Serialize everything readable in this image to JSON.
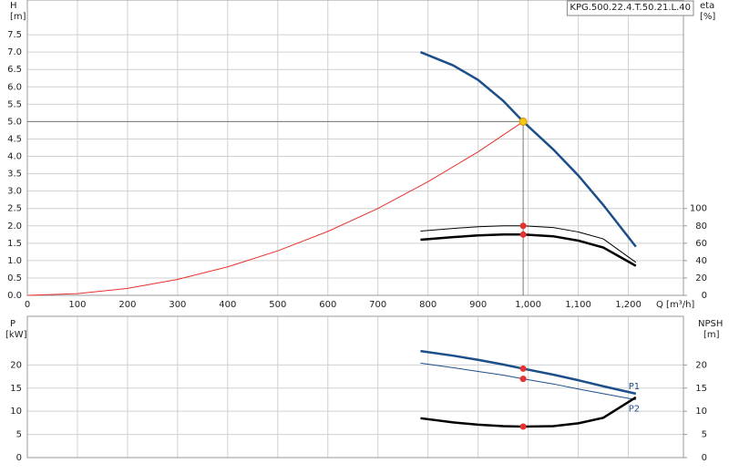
{
  "chart_data": [
    {
      "type": "line",
      "title": "KPG.500.22.4.T.50.21.L.40",
      "y_label": "H",
      "y_unit": "[m]",
      "y2_label": "eta",
      "y2_unit": "[%]",
      "x_label": "Q [m³/h]",
      "xlim": [
        0,
        1310
      ],
      "xticks": [
        0,
        100,
        200,
        300,
        400,
        500,
        600,
        700,
        800,
        900,
        {
          "value": 1000,
          "label": "1,000"
        },
        {
          "value": 1100,
          "label": "1,100"
        },
        {
          "value": 1200,
          "label": "1,200"
        }
      ],
      "ylim": [
        0,
        8.5
      ],
      "yticks": [
        {
          "value": 0,
          "label": "0.0"
        },
        0.5,
        {
          "value": 1,
          "label": "1.0"
        },
        1.5,
        {
          "value": 2,
          "label": "2.0"
        },
        2.5,
        {
          "value": 3,
          "label": "3.0"
        },
        3.5,
        {
          "value": 4,
          "label": "4.0"
        },
        4.5,
        {
          "value": 5,
          "label": "5.0"
        },
        5.5,
        {
          "value": 6,
          "label": "6.0"
        },
        6.5,
        {
          "value": 7,
          "label": "7.0"
        },
        7.5
      ],
      "y2lim": [
        0,
        340
      ],
      "y2ticks": [
        0,
        20,
        40,
        60,
        80,
        100
      ],
      "grid": true,
      "operating_point": {
        "x": 990,
        "y": 5.0,
        "color": "#f5c518"
      },
      "series": [
        {
          "color": "#1c4f8a",
          "line_width": 2.5,
          "x": [
            785,
            850,
            900,
            950,
            990,
            1050,
            1100,
            1150,
            1215
          ],
          "values": [
            7.0,
            6.62,
            6.2,
            5.6,
            5.0,
            4.2,
            3.45,
            2.6,
            1.4
          ]
        },
        {
          "color": "#e8322d",
          "line_width": 1,
          "x": [
            0,
            100,
            200,
            300,
            400,
            500,
            600,
            700,
            800,
            900,
            990
          ],
          "values": [
            0,
            0.05,
            0.2,
            0.46,
            0.82,
            1.28,
            1.84,
            2.5,
            3.27,
            4.13,
            5.0
          ]
        },
        {
          "color": "#000000",
          "line_width": 1,
          "axis": "y2",
          "marker_color": "#e8322d",
          "x": [
            785,
            850,
            900,
            950,
            990,
            1050,
            1100,
            1150,
            1215
          ],
          "values": [
            74,
            77,
            79,
            80,
            80,
            78,
            73,
            65,
            38
          ]
        },
        {
          "color": "#000000",
          "line_width": 2.5,
          "axis": "y2",
          "marker_color": "#e8322d",
          "x": [
            785,
            850,
            900,
            950,
            990,
            1050,
            1100,
            1150,
            1215
          ],
          "values": [
            64,
            67,
            69,
            70,
            70,
            68,
            63,
            55,
            34
          ]
        }
      ]
    },
    {
      "type": "line",
      "y_label": "P",
      "y_unit": "[kW]",
      "y2_label": "NPSH",
      "y2_unit": "[m]",
      "xlim": [
        0,
        1310
      ],
      "xticks": [
        0,
        100,
        200,
        300,
        400,
        500,
        600,
        700,
        800,
        900,
        1000,
        1100,
        1200
      ],
      "show_xtick_labels": false,
      "ylim": [
        0,
        30.5
      ],
      "yticks": [
        0,
        5,
        10,
        15,
        20
      ],
      "y2lim": [
        0,
        30.5
      ],
      "y2ticks": [
        0,
        5,
        10,
        15,
        20
      ],
      "grid": true,
      "marker_x": 990,
      "series": [
        {
          "name": "P1",
          "color": "#1c4f8a",
          "line_width": 2.5,
          "marker_color": "#e8322d",
          "x": [
            785,
            850,
            900,
            950,
            990,
            1050,
            1100,
            1150,
            1215
          ],
          "values": [
            23.0,
            22.0,
            21.1,
            20.1,
            19.2,
            17.9,
            16.7,
            15.4,
            13.8
          ]
        },
        {
          "name": "P2",
          "color": "#1c4f8a",
          "line_width": 1,
          "marker_color": "#e8322d",
          "x": [
            785,
            850,
            900,
            950,
            990,
            1050,
            1100,
            1150,
            1215
          ],
          "values": [
            20.4,
            19.4,
            18.6,
            17.8,
            17.0,
            15.9,
            14.8,
            13.8,
            12.5
          ]
        },
        {
          "color": "#000000",
          "line_width": 2.5,
          "axis": "y2",
          "marker_color": "#e8322d",
          "x": [
            785,
            850,
            900,
            950,
            990,
            1050,
            1100,
            1150,
            1215
          ],
          "values": [
            8.5,
            7.6,
            7.1,
            6.8,
            6.7,
            6.8,
            7.4,
            8.6,
            13.0
          ]
        }
      ]
    }
  ]
}
